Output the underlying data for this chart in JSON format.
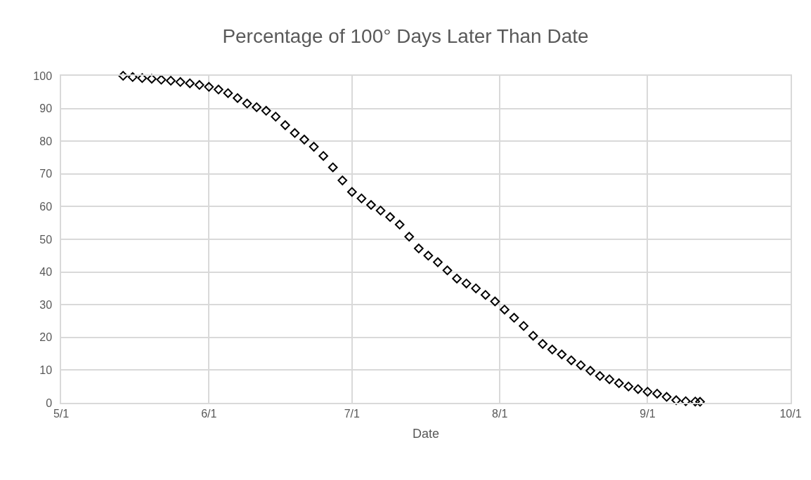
{
  "chart_data": {
    "type": "scatter",
    "title": "Percentage of 100° Days Later Than Date",
    "xlabel": "Date",
    "x": [
      "--05-14",
      "--05-16",
      "--05-18",
      "--05-20",
      "--05-22",
      "--05-24",
      "--05-26",
      "--05-28",
      "--05-30",
      "--06-01",
      "--06-03",
      "--06-05",
      "--06-07",
      "--06-09",
      "--06-11",
      "--06-13",
      "--06-15",
      "--06-17",
      "--06-19",
      "--06-21",
      "--06-23",
      "--06-25",
      "--06-27",
      "--06-29",
      "--07-01",
      "--07-03",
      "--07-05",
      "--07-07",
      "--07-09",
      "--07-11",
      "--07-13",
      "--07-15",
      "--07-17",
      "--07-19",
      "--07-21",
      "--07-23",
      "--07-25",
      "--07-27",
      "--07-29",
      "--07-31",
      "--08-02",
      "--08-04",
      "--08-06",
      "--08-08",
      "--08-10",
      "--08-12",
      "--08-14",
      "--08-16",
      "--08-18",
      "--08-20",
      "--08-22",
      "--08-24",
      "--08-26",
      "--08-28",
      "--08-30",
      "--09-01",
      "--09-03",
      "--09-05",
      "--09-07",
      "--09-09",
      "--09-11",
      "--09-12"
    ],
    "series": [
      {
        "color": "#000000",
        "values": [
          100,
          99.6,
          99.3,
          99.1,
          98.8,
          98.5,
          98.1,
          97.7,
          97.2,
          96.6,
          95.8,
          94.7,
          93.2,
          91.5,
          90.4,
          89.3,
          87.5,
          84.9,
          82.5,
          80.5,
          78.3,
          75.5,
          72,
          68,
          64.5,
          62.5,
          60.5,
          58.8,
          56.8,
          54.5,
          50.8,
          47.2,
          45,
          43,
          40.5,
          38,
          36.5,
          35,
          33,
          31,
          28.5,
          26,
          23.5,
          20.5,
          18,
          16.3,
          14.8,
          13,
          11.5,
          9.8,
          8.2,
          7.2,
          6,
          5,
          4.2,
          3.4,
          2.8,
          1.8,
          0.8,
          0.5,
          0.4,
          0.3
        ]
      }
    ],
    "xlim": [
      "--05-01",
      "--10-01"
    ],
    "xticks": [
      {
        "value": "--05-01",
        "label": "5/1"
      },
      {
        "value": "--06-01",
        "label": "6/1"
      },
      {
        "value": "--07-01",
        "label": "7/1"
      },
      {
        "value": "--08-01",
        "label": "8/1"
      },
      {
        "value": "--09-01",
        "label": "9/1"
      },
      {
        "value": "--10-01",
        "label": "10/1"
      }
    ],
    "ylim": [
      0,
      100
    ],
    "yticks": [
      0,
      10,
      20,
      30,
      40,
      50,
      60,
      70,
      80,
      90,
      100
    ],
    "grid": true,
    "marker": "diamond"
  }
}
